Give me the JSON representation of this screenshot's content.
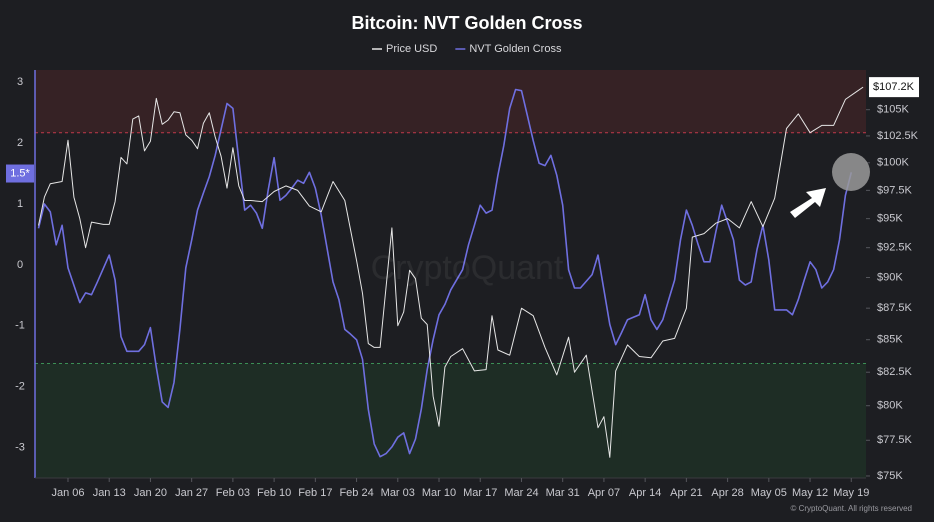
{
  "chart_data": {
    "type": "line",
    "title": "Bitcoin: NVT Golden Cross",
    "watermark": "CryptoQuant",
    "footer": "© CryptoQuant. All rights reserved",
    "xlim": [
      -0.6,
      140.5
    ],
    "xticks": [
      {
        "value": 5,
        "label": "Jan 06"
      },
      {
        "value": 12,
        "label": "Jan 13"
      },
      {
        "value": 19,
        "label": "Jan 20"
      },
      {
        "value": 26,
        "label": "Jan 27"
      },
      {
        "value": 33,
        "label": "Feb 03"
      },
      {
        "value": 40,
        "label": "Feb 10"
      },
      {
        "value": 47,
        "label": "Feb 17"
      },
      {
        "value": 54,
        "label": "Feb 24"
      },
      {
        "value": 61,
        "label": "Mar 03"
      },
      {
        "value": 68,
        "label": "Mar 10"
      },
      {
        "value": 75,
        "label": "Mar 17"
      },
      {
        "value": 82,
        "label": "Mar 24"
      },
      {
        "value": 89,
        "label": "Mar 31"
      },
      {
        "value": 96,
        "label": "Apr 07"
      },
      {
        "value": 103,
        "label": "Apr 14"
      },
      {
        "value": 110,
        "label": "Apr 21"
      },
      {
        "value": 117,
        "label": "Apr 28"
      },
      {
        "value": 124,
        "label": "May 05"
      },
      {
        "value": 131,
        "label": "May 12"
      },
      {
        "value": 138,
        "label": "May 19"
      }
    ],
    "ylim": [
      -3.5,
      3.2
    ],
    "yticks": [
      -3,
      -2,
      -1,
      0,
      1,
      2,
      3
    ],
    "y2lim": [
      74860,
      108900
    ],
    "y2log": true,
    "y2ticks": [
      {
        "value": 75000,
        "label": "$75K"
      },
      {
        "value": 77500,
        "label": "$77.5K"
      },
      {
        "value": 80000,
        "label": "$80K"
      },
      {
        "value": 82500,
        "label": "$82.5K"
      },
      {
        "value": 85000,
        "label": "$85K"
      },
      {
        "value": 87500,
        "label": "$87.5K"
      },
      {
        "value": 90000,
        "label": "$90K"
      },
      {
        "value": 92500,
        "label": "$92.5K"
      },
      {
        "value": 95000,
        "label": "$95K"
      },
      {
        "value": 97500,
        "label": "$97.5K"
      },
      {
        "value": 100000,
        "label": "$100K"
      },
      {
        "value": 102500,
        "label": "$102.5K"
      },
      {
        "value": 105000,
        "label": "$105K"
      }
    ],
    "y_current": {
      "value": 1.5,
      "label": "1.5*",
      "color": "#6f6fe0"
    },
    "y2_current": {
      "value": 107200,
      "label": "$107.2K",
      "color": "#ffffff"
    },
    "upper_threshold": 2.17,
    "lower_threshold": -1.62,
    "series": [
      {
        "name": "Price USD",
        "color": "#e6e6e6",
        "axis": "y2",
        "x": [
          0,
          1,
          2,
          4,
          5,
          6,
          7,
          8,
          9,
          11,
          12,
          13,
          14,
          15,
          16,
          17,
          18,
          19,
          20,
          21,
          22,
          23,
          24,
          25,
          26,
          27,
          28,
          29,
          30,
          31,
          32,
          33,
          34,
          35,
          36,
          38,
          40,
          42,
          44,
          46,
          48,
          50,
          52,
          54,
          55,
          56,
          57,
          58,
          60,
          61,
          62,
          63,
          64,
          65,
          66,
          67,
          68,
          69,
          70,
          72,
          74,
          76,
          77,
          78,
          80,
          82,
          84,
          86,
          88,
          90,
          91,
          93,
          95,
          96,
          97,
          98,
          100,
          102,
          104,
          106,
          108,
          110,
          111,
          113,
          115,
          117,
          119,
          121,
          123,
          125,
          127,
          129,
          131,
          133,
          135,
          137,
          139,
          140
        ],
        "values": [
          94400,
          96900,
          98100,
          98300,
          102100,
          96900,
          95000,
          92500,
          94700,
          94500,
          94500,
          96500,
          100500,
          99900,
          104100,
          104400,
          101100,
          102000,
          106100,
          103600,
          104000,
          104800,
          104700,
          102600,
          102100,
          101300,
          103700,
          104700,
          102400,
          100600,
          97700,
          101400,
          97900,
          96600,
          96600,
          96500,
          97400,
          97900,
          97500,
          96100,
          95600,
          98300,
          96600,
          91400,
          88700,
          84700,
          84400,
          84400,
          94200,
          86100,
          87200,
          90600,
          89900,
          86700,
          86200,
          80700,
          78500,
          82900,
          83700,
          84300,
          82600,
          82700,
          86900,
          84200,
          83800,
          87500,
          86900,
          84400,
          82300,
          85200,
          82500,
          83800,
          78400,
          79200,
          76300,
          82600,
          84600,
          83700,
          83600,
          84900,
          85100,
          87500,
          93400,
          93700,
          94600,
          95000,
          94200,
          96500,
          94300,
          96800,
          103200,
          104600,
          102800,
          103500,
          103500,
          106000,
          106800,
          107200
        ]
      },
      {
        "name": "NVT Golden Cross",
        "color": "#6f6fe0",
        "x": [
          0,
          1,
          2,
          3,
          4,
          5,
          7,
          8,
          9,
          10,
          12,
          13,
          14,
          15,
          17,
          18,
          19,
          20,
          21,
          22,
          23,
          24,
          25,
          26,
          27,
          28,
          29,
          30,
          32,
          33,
          34,
          35,
          36,
          37,
          38,
          39,
          40,
          41,
          42,
          43,
          44,
          45,
          46,
          47,
          48,
          50,
          51,
          52,
          53,
          54,
          55,
          56,
          57,
          58,
          59,
          60,
          61,
          62,
          63,
          64,
          65,
          66,
          67,
          68,
          69,
          70,
          72,
          73,
          74,
          75,
          76,
          77,
          78,
          79,
          80,
          81,
          82,
          83,
          84,
          85,
          86,
          87,
          88,
          89,
          90,
          91,
          92,
          94,
          95,
          96,
          97,
          98,
          99,
          100,
          102,
          103,
          104,
          105,
          106,
          107,
          108,
          109,
          110,
          111,
          112,
          113,
          114,
          115,
          116,
          117,
          118,
          119,
          120,
          121,
          122,
          123,
          124,
          125,
          127,
          128,
          129,
          130,
          131,
          132,
          133,
          134,
          135,
          136,
          137,
          138
        ],
        "values": [
          0.6,
          1.0,
          0.87,
          0.33,
          0.65,
          -0.05,
          -0.62,
          -0.46,
          -0.49,
          -0.28,
          0.16,
          -0.25,
          -1.18,
          -1.42,
          -1.42,
          -1.31,
          -1.03,
          -1.68,
          -2.25,
          -2.34,
          -1.93,
          -1.06,
          -0.05,
          0.41,
          0.9,
          1.18,
          1.45,
          1.8,
          2.65,
          2.57,
          1.72,
          0.9,
          0.98,
          0.85,
          0.6,
          1.23,
          1.76,
          1.06,
          1.14,
          1.26,
          1.39,
          1.34,
          1.52,
          1.26,
          0.82,
          -0.28,
          -0.57,
          -1.06,
          -1.14,
          -1.23,
          -1.55,
          -2.37,
          -2.94,
          -3.15,
          -3.1,
          -2.99,
          -2.83,
          -2.76,
          -3.1,
          -2.86,
          -2.37,
          -1.72,
          -1.23,
          -0.82,
          -0.65,
          -0.41,
          -0.08,
          0.33,
          0.65,
          0.98,
          0.85,
          0.9,
          1.47,
          1.96,
          2.57,
          2.88,
          2.86,
          2.45,
          2.04,
          1.67,
          1.63,
          1.8,
          1.47,
          0.98,
          -0.08,
          -0.38,
          -0.38,
          -0.16,
          0.16,
          -0.41,
          -0.98,
          -1.31,
          -1.11,
          -0.9,
          -0.82,
          -0.49,
          -0.9,
          -1.06,
          -0.9,
          -0.57,
          -0.25,
          0.41,
          0.9,
          0.65,
          0.33,
          0.05,
          0.05,
          0.54,
          0.98,
          0.7,
          0.41,
          -0.25,
          -0.33,
          -0.28,
          0.25,
          0.65,
          0.08,
          -0.74,
          -0.74,
          -0.82,
          -0.57,
          -0.25,
          0.05,
          -0.08,
          -0.38,
          -0.28,
          -0.08,
          0.41,
          1.14,
          1.52
        ]
      }
    ]
  }
}
